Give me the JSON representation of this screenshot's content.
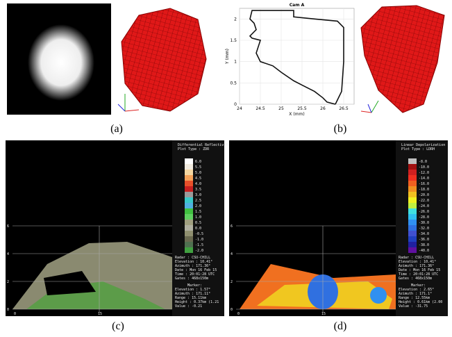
{
  "panels": {
    "a": {
      "caption": "(a)"
    },
    "b": {
      "caption": "(b)",
      "plot": {
        "title": "Cam A",
        "xlabel": "X (mm)",
        "ylabel": "Y (mm)",
        "xlim": [
          24,
          26.75
        ],
        "ylim": [
          0,
          2.25
        ],
        "xticks": [
          24,
          24.5,
          25,
          25.5,
          26,
          26.5
        ],
        "yticks": [
          0,
          0.5,
          1,
          1.5,
          2
        ],
        "outline": {
          "x": [
            26.3,
            26.45,
            26.5,
            26.5,
            26.35,
            25.8,
            25.3,
            25.3,
            24.3,
            24.25,
            24.35,
            24.4,
            24.25,
            24.3,
            24.5,
            24.4,
            24.5,
            24.8,
            25.0,
            25.3,
            25.5,
            25.8,
            26.0,
            26.1,
            26.3
          ],
          "y": [
            0,
            0.3,
            1.0,
            1.8,
            1.95,
            2.0,
            2.05,
            2.2,
            2.2,
            2.0,
            1.9,
            1.75,
            1.6,
            1.55,
            1.5,
            1.2,
            1.0,
            0.9,
            0.75,
            0.55,
            0.45,
            0.3,
            0.15,
            0.05,
            0
          ]
        }
      }
    },
    "c": {
      "caption": "(c)",
      "header": [
        "Differential Reflectivity",
        "Plot Type : ZDR"
      ],
      "scale": [
        "6.0",
        "5.5",
        "5.0",
        "4.5",
        "4.0",
        "3.5",
        "3.0",
        "2.5",
        "2.0",
        "1.5",
        "1.0",
        "0.5",
        "0.0",
        "-0.5",
        "-1.0",
        "-1.5",
        "-2.0"
      ],
      "colors": [
        "#ffffff",
        "#f2ece0",
        "#f5d7a0",
        "#f5a35a",
        "#e8502a",
        "#c82020",
        "#9a9a9a",
        "#38c8c8",
        "#50b0e0",
        "#40c040",
        "#60d060",
        "#a0a080",
        "#b0b0a0",
        "#909070",
        "#6a6a50",
        "#507050",
        "#40a040"
      ],
      "info": [
        "Radar : CSU-CHILL",
        "Elevation : 10.41°",
        "Azimuth : 171.36°",
        "Date : Mon 16 Feb 15",
        "Time : 20:01:28 UTC",
        "Gates : 468x150m"
      ],
      "marker": [
        "Marker:",
        "Elevation : 1.57°",
        "Azimuth : 171.11°",
        "Range : 15.11km",
        "Height : 0.37km (1.21",
        "Value : -0.21"
      ],
      "yaxis": [
        "6",
        "4",
        "2",
        "0"
      ],
      "xaxis": [
        "0",
        "15"
      ]
    },
    "d": {
      "caption": "(d)",
      "header": [
        "Linear Depolarization",
        "Plot Type : LDRH"
      ],
      "scale": [
        "-8.0",
        "-10.0",
        "-12.0",
        "-14.0",
        "-16.0",
        "-18.0",
        "-20.0",
        "-22.0",
        "-24.0",
        "-26.0",
        "-28.0",
        "-30.0",
        "-32.0",
        "-34.0",
        "-36.0",
        "-38.0",
        "-40.0"
      ],
      "colors": [
        "#c0c0c0",
        "#a01010",
        "#d02020",
        "#f03020",
        "#f06020",
        "#f09020",
        "#f0c020",
        "#f0f020",
        "#c0f040",
        "#40e0e0",
        "#30c0f0",
        "#3090f0",
        "#3070e0",
        "#4050d0",
        "#2040c0",
        "#2020a0",
        "#6010a0"
      ],
      "info": [
        "Radar : CSU-CHILL",
        "Elevation : 10.41°",
        "Azimuth : 171.36°",
        "Date : Mon 16 Feb 15",
        "Time : 20:01:28 UTC",
        "Gates : 468x150m"
      ],
      "marker": [
        "Marker:",
        "Elevation : 2.65°",
        "Azimuth : 171.1°",
        "Range : 12.55km",
        "Height : 0.61km (2.00",
        "Value : -31.75"
      ],
      "yaxis": [
        "6",
        "4",
        "2",
        "0"
      ],
      "xaxis": [
        "0",
        "15"
      ]
    }
  }
}
